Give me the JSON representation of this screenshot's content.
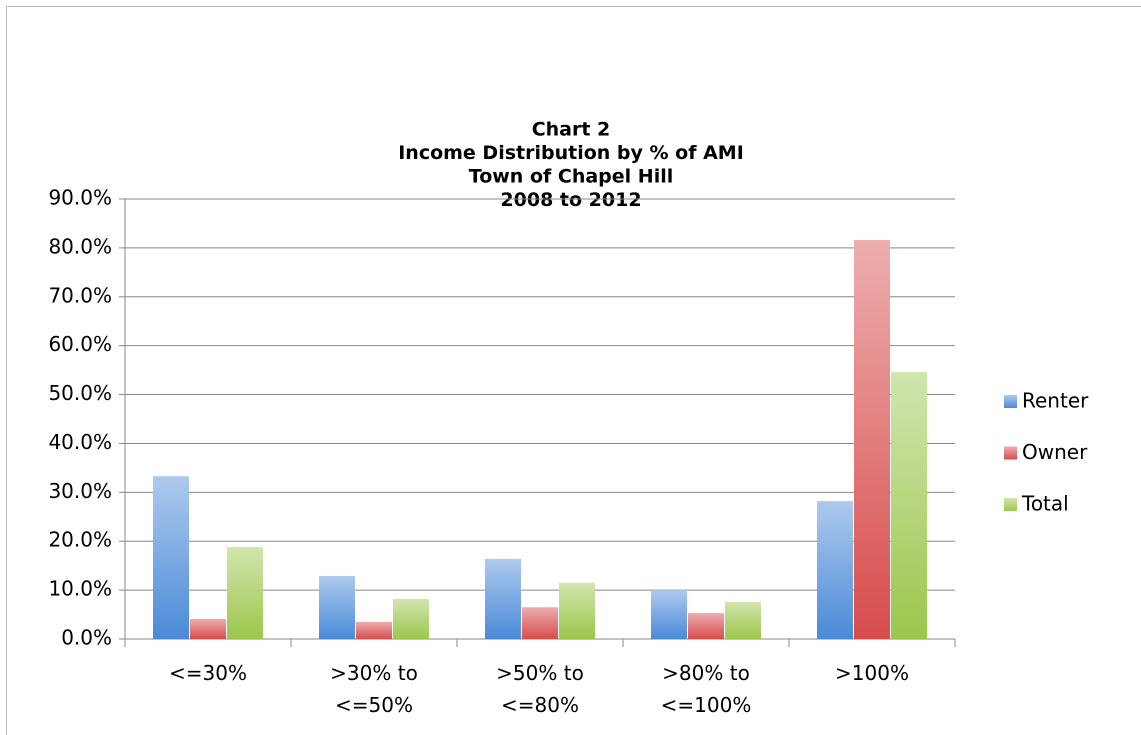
{
  "chart_data": {
    "type": "bar",
    "title": [
      "Chart 2",
      "Income Distribution by % of AMI",
      "Town of Chapel Hill",
      "2008 to 2012"
    ],
    "categories": [
      "<=30%",
      ">30% to <=50%",
      ">50% to <=80%",
      ">80% to <=100%",
      ">100%"
    ],
    "series": [
      {
        "name": "Renter",
        "color": "#4a8ad8",
        "values": [
          33.3,
          12.9,
          16.4,
          10.0,
          28.2
        ]
      },
      {
        "name": "Owner",
        "color": "#d84c4c",
        "values": [
          4.1,
          3.5,
          6.5,
          5.3,
          81.6
        ]
      },
      {
        "name": "Total",
        "color": "#9cc64c",
        "values": [
          18.8,
          8.2,
          11.5,
          7.6,
          54.6
        ]
      }
    ],
    "ylim": [
      0,
      90
    ],
    "yticks": [
      {
        "value": 0,
        "label": "0.0%"
      },
      {
        "value": 10,
        "label": "10.0%"
      },
      {
        "value": 20,
        "label": "20.0%"
      },
      {
        "value": 30,
        "label": "30.0%"
      },
      {
        "value": 40,
        "label": "40.0%"
      },
      {
        "value": 50,
        "label": "50.0%"
      },
      {
        "value": 60,
        "label": "60.0%"
      },
      {
        "value": 70,
        "label": "70.0%"
      },
      {
        "value": 80,
        "label": "80.0%"
      },
      {
        "value": 90,
        "label": "90.0%"
      }
    ],
    "grid": true,
    "legend": "right"
  }
}
